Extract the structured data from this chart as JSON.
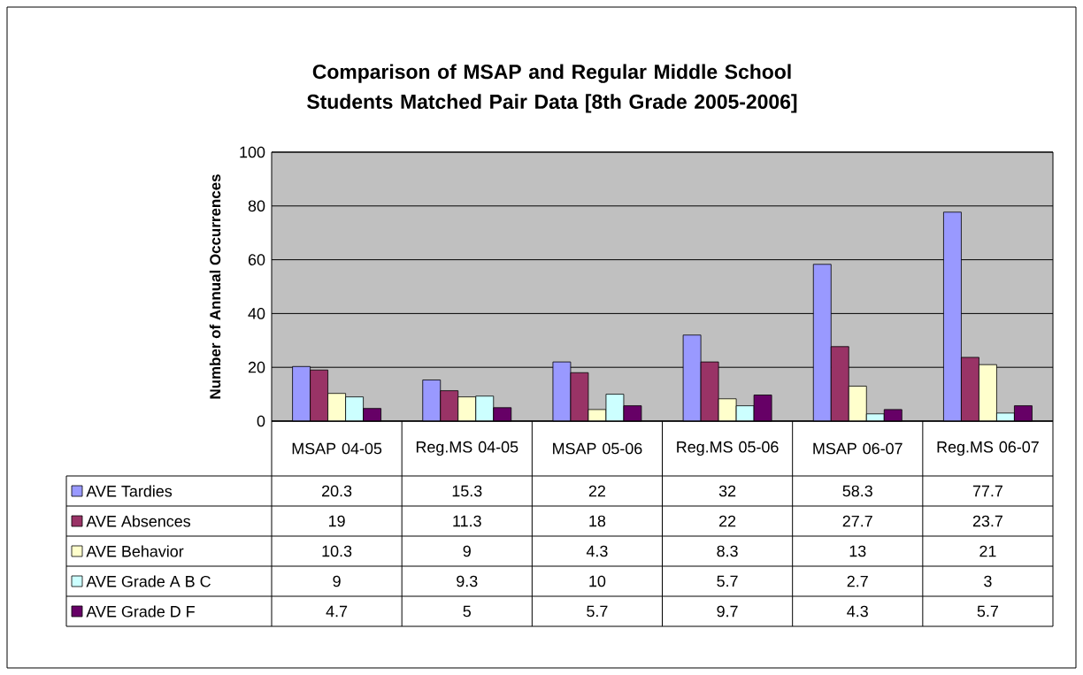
{
  "chart_data": {
    "type": "bar",
    "title": "Comparison of MSAP and Regular Middle School Students Matched Pair Data [8th Grade 2005-2006]",
    "ylabel": "Number of Annual Occurrences",
    "categories": [
      "MSAP 04-05",
      "Reg.MS 04-05",
      "MSAP 05-06",
      "Reg.MS 05-06",
      "MSAP 06-07",
      "Reg.MS 06-07"
    ],
    "series": [
      {
        "name": "AVE Tardies",
        "color": "#9999ff",
        "values": [
          20.3,
          15.3,
          22,
          32,
          58.3,
          77.7
        ]
      },
      {
        "name": "AVE Absences",
        "color": "#993366",
        "values": [
          19,
          11.3,
          18,
          22,
          27.7,
          23.7
        ]
      },
      {
        "name": "AVE Behavior",
        "color": "#ffffcc",
        "values": [
          10.3,
          9,
          4.3,
          8.3,
          13,
          21
        ]
      },
      {
        "name": "AVE Grade A B C",
        "color": "#ccffff",
        "values": [
          9,
          9.3,
          10,
          5.7,
          2.7,
          3
        ]
      },
      {
        "name": "AVE Grade D F",
        "color": "#660066",
        "values": [
          4.7,
          5,
          5.7,
          9.7,
          4.3,
          5.7
        ]
      }
    ],
    "ylim": [
      0,
      100
    ],
    "yticks": [
      0,
      20,
      40,
      60,
      80,
      100
    ],
    "grid": "y",
    "legend": "bottom",
    "data_labels": true
  }
}
